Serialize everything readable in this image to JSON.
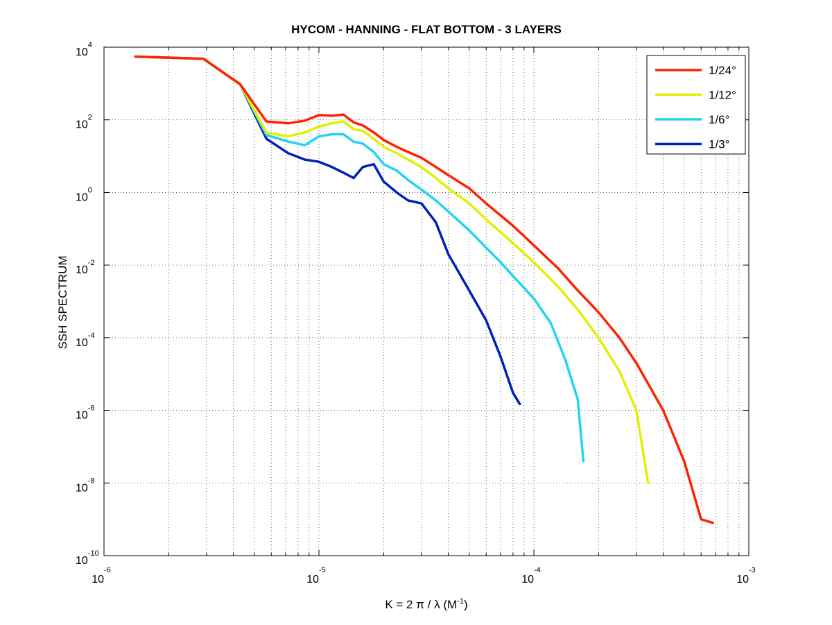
{
  "chart_data": {
    "type": "line",
    "title": "HYCOM - HANNING - FLAT BOTTOM - 3 LAYERS",
    "xlabel": {
      "main": "K = 2 π / λ  (M",
      "sup": "-1",
      "close": ")"
    },
    "ylabel": "SSH SPECTRUM",
    "xscale": "log",
    "yscale": "log",
    "xlim": [
      1e-06,
      0.001
    ],
    "ylim": [
      1e-10,
      10000.0
    ],
    "grid": true,
    "x_ticks": [
      {
        "base": "10",
        "exp": "-6"
      },
      {
        "base": "10",
        "exp": "-5"
      },
      {
        "base": "10",
        "exp": "-4"
      },
      {
        "base": "10",
        "exp": "-3"
      }
    ],
    "y_ticks": [
      {
        "base": "10",
        "exp": "-10"
      },
      {
        "base": "10",
        "exp": "-8"
      },
      {
        "base": "10",
        "exp": "-6"
      },
      {
        "base": "10",
        "exp": "-4"
      },
      {
        "base": "10",
        "exp": "-2"
      },
      {
        "base": "10",
        "exp": "0"
      },
      {
        "base": "10",
        "exp": "2"
      },
      {
        "base": "10",
        "exp": "4"
      }
    ],
    "legend_position": "top-right",
    "series": [
      {
        "name": "1/24°",
        "color": "#ff2200",
        "x": [
          1.4e-06,
          2.9e-06,
          4.3e-06,
          5.7e-06,
          7.2e-06,
          8.6e-06,
          1e-05,
          1.15e-05,
          1.3e-05,
          1.45e-05,
          1.6e-05,
          1.8e-05,
          2e-05,
          2.3e-05,
          2.6e-05,
          3e-05,
          3.5e-05,
          4e-05,
          5e-05,
          6e-05,
          8e-05,
          0.0001,
          0.00013,
          0.00016,
          0.0002,
          0.00025,
          0.0003,
          0.0004,
          0.0005,
          0.0006,
          0.00068
        ],
        "y": [
          5500,
          4800,
          950,
          90,
          80,
          95,
          135,
          130,
          140,
          85,
          70,
          45,
          28,
          18,
          13,
          9,
          5,
          3,
          1.3,
          0.5,
          0.12,
          0.035,
          0.008,
          0.002,
          0.0005,
          0.0001,
          2e-05,
          1e-06,
          4e-08,
          1e-09,
          8e-10
        ]
      },
      {
        "name": "1/12°",
        "color": "#e2f000",
        "x": [
          1.4e-06,
          2.9e-06,
          4.3e-06,
          5.7e-06,
          7.2e-06,
          8.6e-06,
          1e-05,
          1.15e-05,
          1.3e-05,
          1.45e-05,
          1.6e-05,
          1.8e-05,
          2e-05,
          2.3e-05,
          2.6e-05,
          3e-05,
          3.5e-05,
          4e-05,
          5e-05,
          6e-05,
          8e-05,
          0.0001,
          0.00013,
          0.00016,
          0.0002,
          0.00025,
          0.0003,
          0.00034
        ],
        "y": [
          5500,
          4800,
          950,
          45,
          35,
          45,
          65,
          80,
          90,
          55,
          50,
          30,
          18,
          12,
          8,
          5,
          2.5,
          1.3,
          0.5,
          0.18,
          0.04,
          0.012,
          0.0025,
          0.0006,
          0.0001,
          1.2e-05,
          1e-06,
          1e-08
        ]
      },
      {
        "name": "1/6°",
        "color": "#22d4f0",
        "x": [
          1.4e-06,
          2.9e-06,
          4.3e-06,
          5.7e-06,
          7.2e-06,
          8.6e-06,
          1e-05,
          1.15e-05,
          1.3e-05,
          1.45e-05,
          1.6e-05,
          1.8e-05,
          2e-05,
          2.3e-05,
          2.6e-05,
          3e-05,
          3.5e-05,
          4e-05,
          5e-05,
          6e-05,
          7e-05,
          8e-05,
          0.0001,
          0.00012,
          0.00014,
          0.00016,
          0.00017
        ],
        "y": [
          5500,
          4800,
          950,
          38,
          25,
          20,
          35,
          40,
          40,
          25,
          22,
          13,
          6,
          4,
          2.2,
          1.2,
          0.6,
          0.3,
          0.09,
          0.03,
          0.012,
          0.005,
          0.0012,
          0.00025,
          2.5e-05,
          2e-06,
          4e-08
        ]
      },
      {
        "name": "1/3°",
        "color": "#0020b8",
        "x": [
          1.4e-06,
          2.9e-06,
          4.3e-06,
          5.7e-06,
          7.2e-06,
          8.6e-06,
          1e-05,
          1.15e-05,
          1.3e-05,
          1.45e-05,
          1.6e-05,
          1.8e-05,
          2e-05,
          2.3e-05,
          2.6e-05,
          3e-05,
          3.5e-05,
          4e-05,
          5e-05,
          6e-05,
          7e-05,
          8e-05,
          8.6e-05
        ],
        "y": [
          5500,
          4800,
          950,
          30,
          12,
          8,
          7,
          5,
          3.5,
          2.5,
          5,
          6,
          2,
          1,
          0.6,
          0.5,
          0.15,
          0.02,
          0.002,
          0.0003,
          3e-05,
          3e-06,
          1.5e-06
        ]
      }
    ]
  }
}
